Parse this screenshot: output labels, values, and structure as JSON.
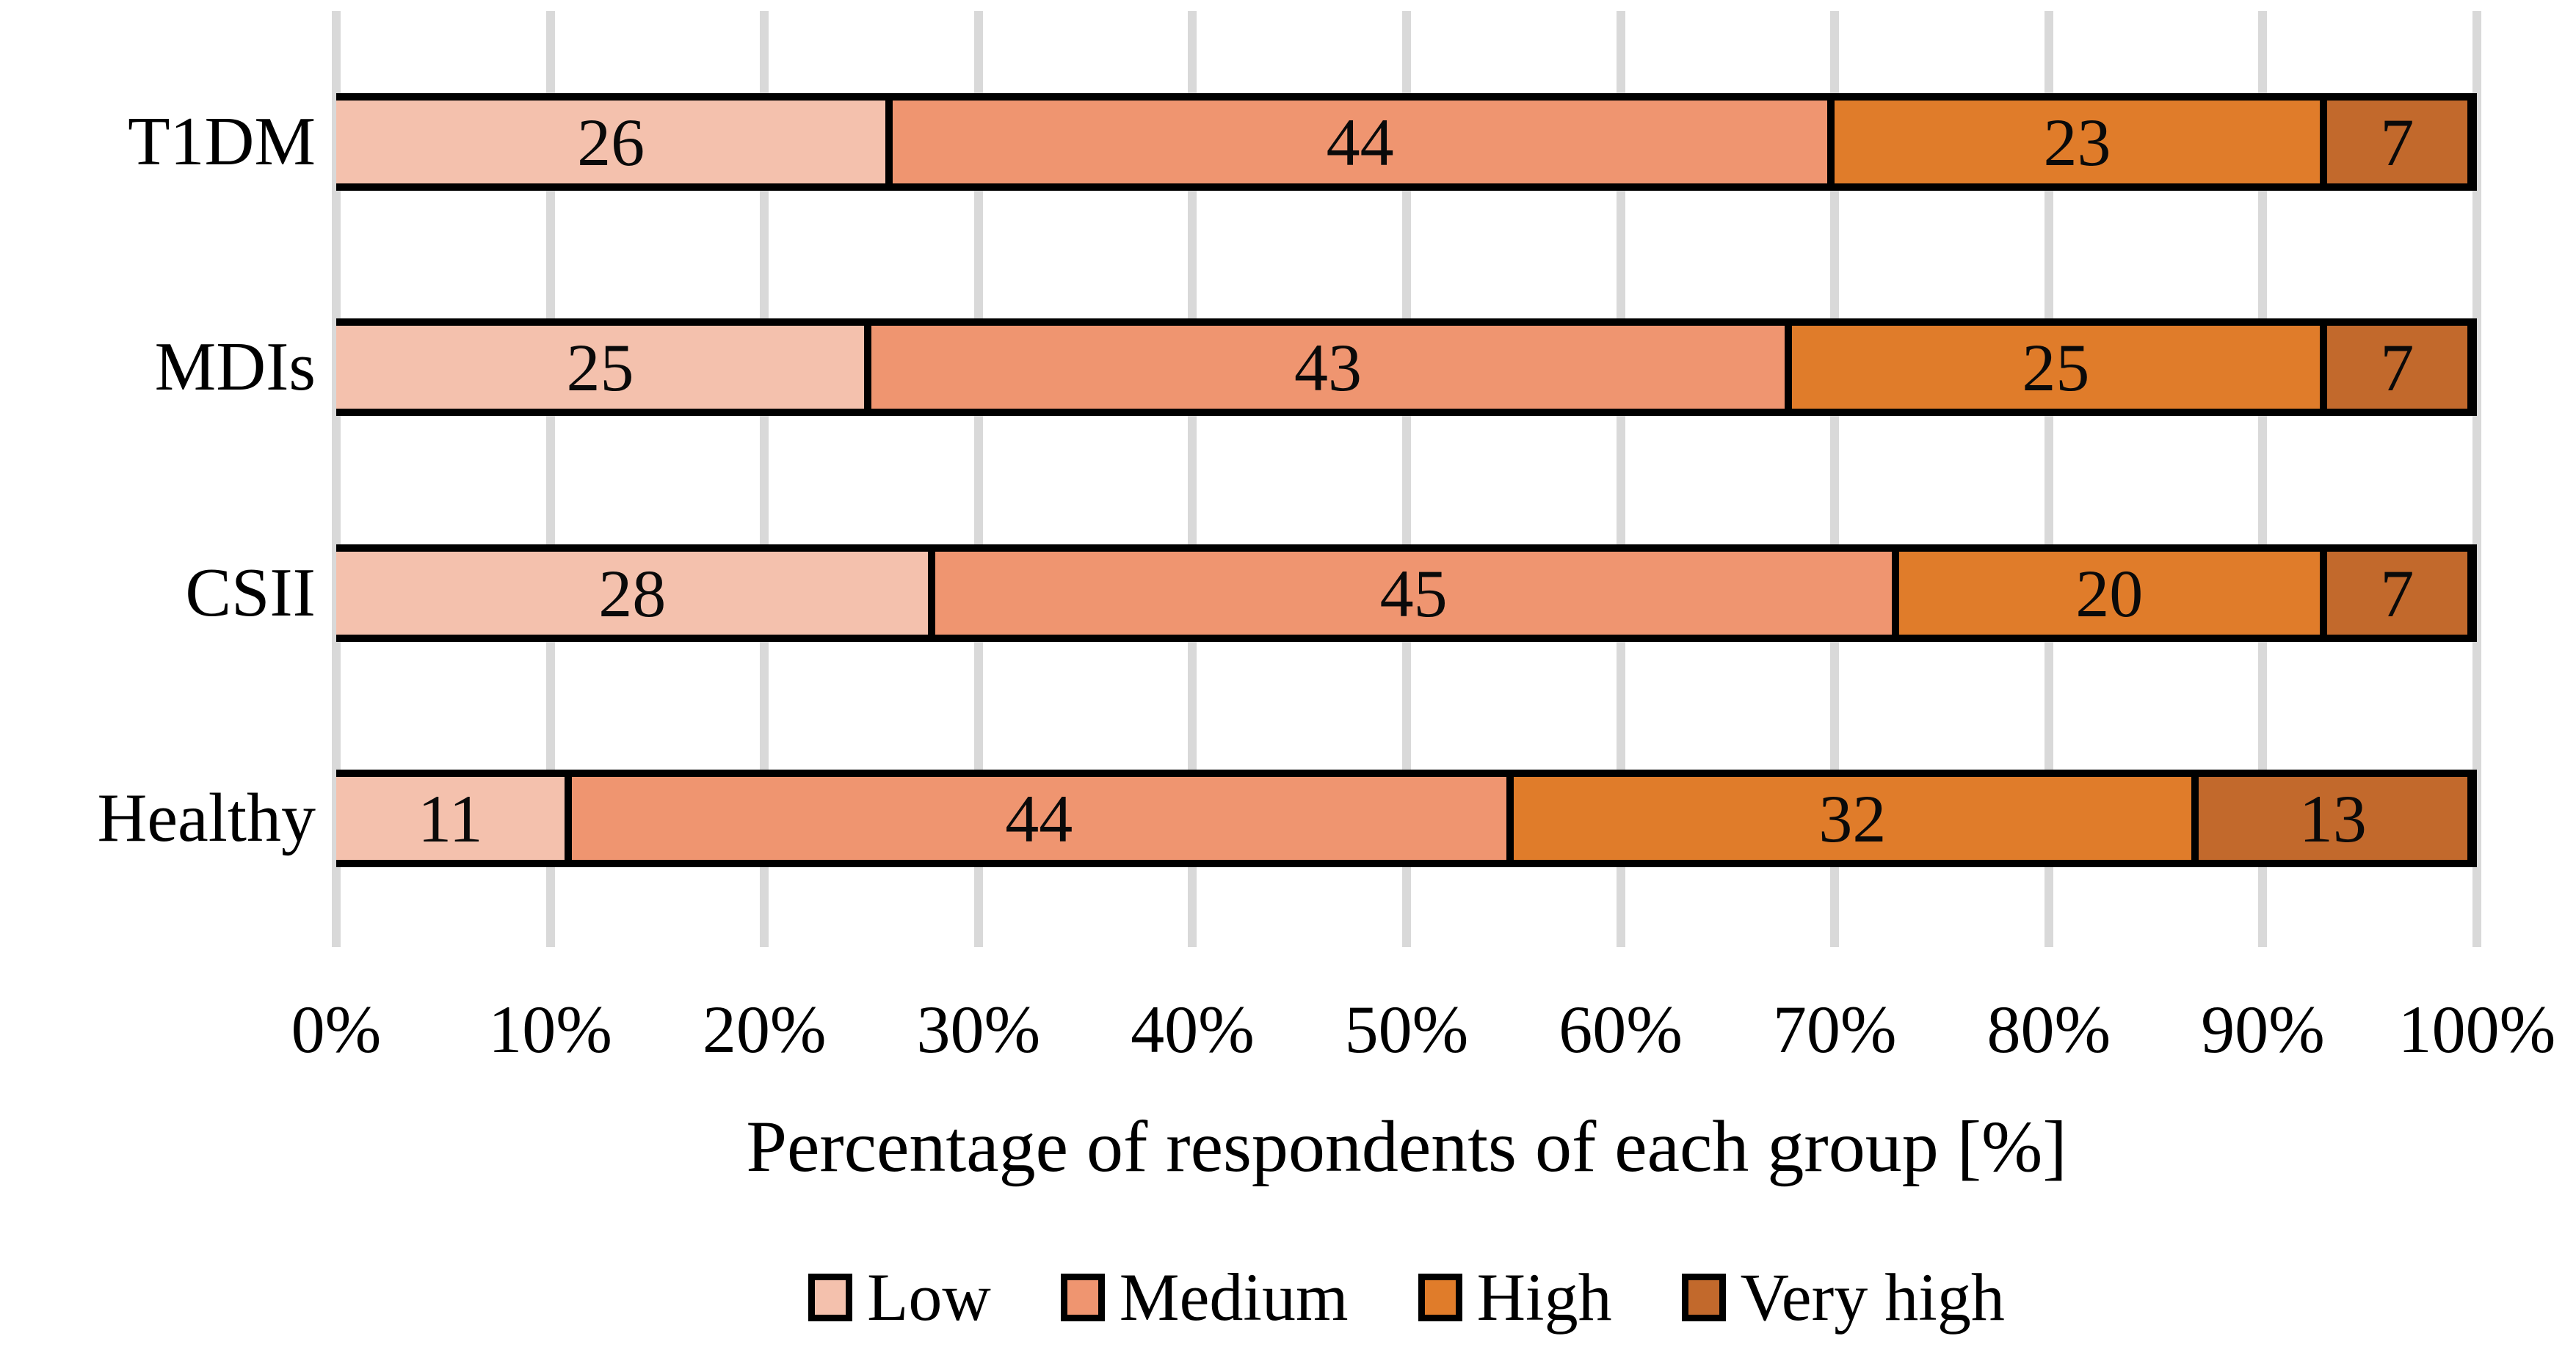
{
  "chart_data": {
    "type": "bar",
    "orientation": "horizontal",
    "stacked": true,
    "categories": [
      "T1DM",
      "MDIs",
      "CSII",
      "Healthy"
    ],
    "series": [
      {
        "name": "Low",
        "color": "#F4C1AD",
        "values": [
          26,
          25,
          28,
          11
        ]
      },
      {
        "name": "Medium",
        "color": "#EF9570",
        "values": [
          44,
          43,
          45,
          44
        ]
      },
      {
        "name": "High",
        "color": "#E07C2A",
        "values": [
          23,
          25,
          20,
          32
        ]
      },
      {
        "name": "Very high",
        "color": "#C2692C",
        "values": [
          7,
          7,
          7,
          13
        ]
      }
    ],
    "xlabel": "Percentage of respondents of each group [%]",
    "x_ticks": [
      "0%",
      "10%",
      "20%",
      "30%",
      "40%",
      "50%",
      "60%",
      "70%",
      "80%",
      "90%",
      "100%"
    ],
    "xlim": [
      0,
      100
    ],
    "grid": "vertical",
    "gridline_color": "#D9D9D9",
    "bar_border_color": "#000000",
    "background_color": "#FFFFFF",
    "legend_position": "bottom"
  }
}
